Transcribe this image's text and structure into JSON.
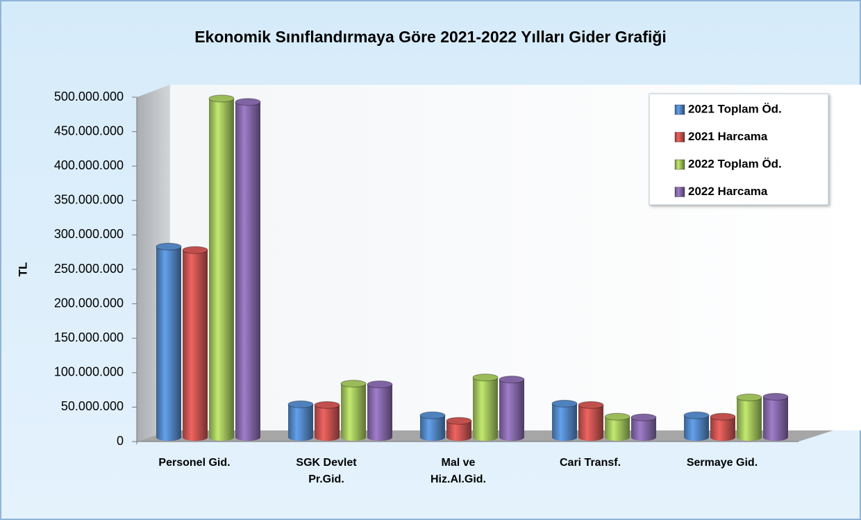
{
  "chart_data": {
    "type": "bar",
    "title": "Ekonomik Sınıflandırmaya Göre 2021-2022 Yılları Gider Grafiği",
    "y_label": "TL",
    "categories": [
      "Personel Gid.",
      "SGK Devlet Pr.Gid.",
      "Mal ve Hiz.Al.Gid.",
      "Cari Transf.",
      "Sermaye Gid."
    ],
    "series": [
      {
        "name": "2021 Toplam Öd.",
        "color": "#4f81bd",
        "values": [
          277000000,
          48000000,
          32000000,
          49000000,
          32000000
        ]
      },
      {
        "name": "2021 Harcama",
        "color": "#c0504d",
        "values": [
          272000000,
          47000000,
          24000000,
          47000000,
          30000000
        ]
      },
      {
        "name": "2022 Toplam Öd.",
        "color": "#9bbb59",
        "values": [
          492000000,
          78000000,
          87000000,
          30000000,
          58000000
        ]
      },
      {
        "name": "2022 Harcama",
        "color": "#8064a2",
        "values": [
          487000000,
          77000000,
          84000000,
          29000000,
          59000000
        ]
      }
    ],
    "ylim": [
      0,
      500000000
    ],
    "yticks": [
      0,
      {
        "value": 50000000,
        "label": "50.000.000"
      },
      {
        "value": 100000000,
        "label": "100.000.000"
      },
      {
        "value": 150000000,
        "label": "150.000.000"
      },
      {
        "value": 200000000,
        "label": "200.000.000"
      },
      {
        "value": 250000000,
        "label": "250.000.000"
      },
      {
        "value": 300000000,
        "label": "300.000.000"
      },
      {
        "value": 350000000,
        "label": "350.000.000"
      },
      {
        "value": 400000000,
        "label": "400.000.000"
      },
      {
        "value": 450000000,
        "label": "450.000.000"
      },
      {
        "value": 500000000,
        "label": "500.000.000"
      }
    ],
    "grid": false,
    "legend": "upper right"
  }
}
